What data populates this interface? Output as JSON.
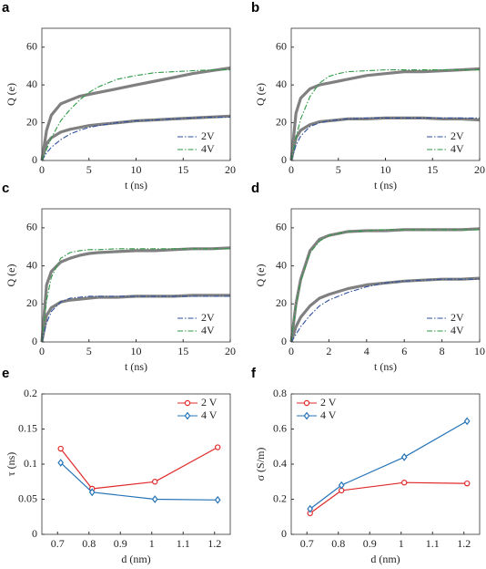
{
  "chart_data": [
    {
      "type": "line",
      "panel_label": "a",
      "xlabel": "t (ns)",
      "ylabel": "Q (e)",
      "x": [
        0,
        0.5,
        1,
        2,
        3,
        4,
        5,
        6,
        8,
        10,
        12,
        14,
        16,
        18,
        20
      ],
      "xlim": [
        0,
        20
      ],
      "xticks": [
        0,
        5,
        10,
        15,
        20
      ],
      "ylim": [
        0,
        70
      ],
      "yticks": [
        0,
        20,
        40,
        60
      ],
      "legend": "lower right",
      "series": [
        {
          "color": "#808080",
          "style": "thick",
          "values": [
            0,
            16,
            24,
            30,
            32,
            34,
            35,
            36,
            38,
            40,
            42,
            44,
            46,
            47.5,
            49
          ]
        },
        {
          "color": "#808080",
          "style": "thick",
          "values": [
            0,
            9,
            12,
            15,
            16.5,
            17.5,
            18.5,
            19,
            20,
            21,
            21.5,
            22,
            22.5,
            23,
            23.5
          ]
        },
        {
          "name": "2V",
          "color": "#2c4f9e",
          "style": "dashdot",
          "values": [
            0,
            4,
            7,
            11,
            14,
            16,
            17.5,
            18.5,
            20,
            21,
            21.5,
            22,
            22.5,
            23,
            23
          ]
        },
        {
          "name": "4V",
          "color": "#2f9a45",
          "style": "dashdot",
          "values": [
            0,
            6,
            12,
            21,
            27,
            32,
            36,
            39,
            43,
            45,
            46.5,
            47,
            47.5,
            48,
            48
          ]
        }
      ]
    },
    {
      "type": "line",
      "panel_label": "b",
      "xlabel": "t (ns)",
      "ylabel": "Q (e)",
      "x": [
        0,
        0.5,
        1,
        2,
        3,
        4,
        5,
        6,
        8,
        10,
        12,
        14,
        16,
        18,
        20
      ],
      "xlim": [
        0,
        20
      ],
      "xticks": [
        0,
        5,
        10,
        15,
        20
      ],
      "ylim": [
        0,
        70
      ],
      "yticks": [
        0,
        20,
        40,
        60
      ],
      "legend": "lower right",
      "series": [
        {
          "color": "#808080",
          "style": "thick",
          "values": [
            0,
            25,
            33,
            38,
            40,
            41,
            42,
            43,
            45,
            46,
            47,
            47,
            47.5,
            48,
            48.5
          ]
        },
        {
          "color": "#808080",
          "style": "thick",
          "values": [
            0,
            12,
            16,
            19,
            20.5,
            21,
            21.5,
            22,
            22,
            22.5,
            22.5,
            22.5,
            22,
            22,
            21.5
          ]
        },
        {
          "name": "2V",
          "color": "#2c4f9e",
          "style": "dashdot",
          "values": [
            0,
            8,
            13,
            18,
            20,
            21,
            21.5,
            22,
            22.5,
            22.5,
            22.5,
            22.5,
            22.5,
            22.5,
            22.5
          ]
        },
        {
          "name": "4V",
          "color": "#2f9a45",
          "style": "dashdot",
          "values": [
            0,
            12,
            22,
            34,
            41,
            44.5,
            46,
            47,
            47.5,
            48,
            48,
            48,
            48,
            48,
            48
          ]
        }
      ]
    },
    {
      "type": "line",
      "panel_label": "c",
      "xlabel": "t (ns)",
      "ylabel": "Q (e)",
      "x": [
        0,
        0.5,
        1,
        2,
        3,
        4,
        5,
        6,
        8,
        10,
        12,
        14,
        16,
        18,
        20
      ],
      "xlim": [
        0,
        20
      ],
      "xticks": [
        0,
        5,
        10,
        15,
        20
      ],
      "ylim": [
        0,
        70
      ],
      "yticks": [
        0,
        20,
        40,
        60
      ],
      "legend": "lower right",
      "series": [
        {
          "color": "#808080",
          "style": "thick",
          "values": [
            0,
            30,
            37,
            42,
            44,
            45.5,
            46.5,
            47,
            47.5,
            48,
            48,
            48.5,
            49,
            49,
            49.5
          ]
        },
        {
          "color": "#808080",
          "style": "thick",
          "values": [
            0,
            14,
            18,
            21,
            22,
            22.5,
            23,
            23.5,
            23.5,
            24,
            24,
            24,
            24.5,
            24.5,
            24.5
          ]
        },
        {
          "name": "2V",
          "color": "#2c4f9e",
          "style": "dashdot",
          "values": [
            0,
            10,
            16,
            21,
            23,
            23.5,
            24,
            24,
            24,
            24,
            24,
            24,
            24,
            24,
            24
          ]
        },
        {
          "name": "4V",
          "color": "#2f9a45",
          "style": "dashdot",
          "values": [
            0,
            22,
            34,
            44,
            47,
            48,
            48.5,
            48.5,
            49,
            49,
            49,
            49,
            49,
            49,
            49
          ]
        }
      ]
    },
    {
      "type": "line",
      "panel_label": "d",
      "xlabel": "t (ns)",
      "ylabel": "Q (e)",
      "x": [
        0,
        0.25,
        0.5,
        1,
        1.5,
        2,
        3,
        4,
        5,
        6,
        7,
        8,
        9,
        10
      ],
      "xlim": [
        0,
        10
      ],
      "xticks": [
        0,
        2,
        4,
        6,
        8,
        10
      ],
      "ylim": [
        0,
        70
      ],
      "yticks": [
        0,
        20,
        40,
        60
      ],
      "legend": "lower right",
      "series": [
        {
          "color": "#808080",
          "style": "thick",
          "values": [
            0,
            20,
            33,
            48,
            54,
            56,
            58,
            58.5,
            58.5,
            59,
            59,
            59,
            59,
            59.5
          ]
        },
        {
          "color": "#808080",
          "style": "thick",
          "values": [
            0,
            8,
            13,
            19,
            23,
            25,
            28,
            30,
            31,
            32,
            32.5,
            33,
            33,
            33.5
          ]
        },
        {
          "name": "2V",
          "color": "#2c4f9e",
          "style": "dashdot",
          "values": [
            0,
            4,
            8,
            14,
            19,
            22,
            26,
            29,
            31,
            32,
            32.5,
            33,
            33,
            33
          ]
        },
        {
          "name": "4V",
          "color": "#2f9a45",
          "style": "dashdot",
          "values": [
            0,
            19,
            32,
            47,
            53,
            56,
            58,
            58.5,
            59,
            59,
            59,
            59,
            59,
            59
          ]
        }
      ]
    },
    {
      "type": "line",
      "panel_label": "e",
      "xlabel": "d (nm)",
      "ylabel": "τ (ns)",
      "x": [
        0.71,
        0.81,
        1.01,
        1.21
      ],
      "xlim": [
        0.65,
        1.25
      ],
      "xticks": [
        0.7,
        0.8,
        0.9,
        1,
        1.1,
        1.2
      ],
      "ylim": [
        0,
        0.2
      ],
      "yticks": [
        0,
        0.05,
        0.1,
        0.15,
        0.2
      ],
      "legend": "upper right",
      "series": [
        {
          "name": "2 V",
          "color": "#e02a2a",
          "style": "solid",
          "marker": "circle",
          "values": [
            0.122,
            0.065,
            0.075,
            0.124
          ]
        },
        {
          "name": "4 V",
          "color": "#2574b8",
          "style": "solid",
          "marker": "diamond",
          "values": [
            0.102,
            0.06,
            0.05,
            0.049
          ]
        }
      ]
    },
    {
      "type": "line",
      "panel_label": "f",
      "xlabel": "d (nm)",
      "ylabel": "σ (S/m)",
      "x": [
        0.71,
        0.81,
        1.01,
        1.21
      ],
      "xlim": [
        0.65,
        1.25
      ],
      "xticks": [
        0.7,
        0.8,
        0.9,
        1,
        1.1,
        1.2
      ],
      "ylim": [
        0,
        0.8
      ],
      "yticks": [
        0,
        0.2,
        0.4,
        0.6,
        0.8
      ],
      "legend": "upper left",
      "series": [
        {
          "name": "2 V",
          "color": "#e02a2a",
          "style": "solid",
          "marker": "circle",
          "values": [
            0.12,
            0.25,
            0.295,
            0.29
          ]
        },
        {
          "name": "4 V",
          "color": "#2574b8",
          "style": "solid",
          "marker": "diamond",
          "values": [
            0.145,
            0.28,
            0.44,
            0.645
          ]
        }
      ]
    }
  ]
}
